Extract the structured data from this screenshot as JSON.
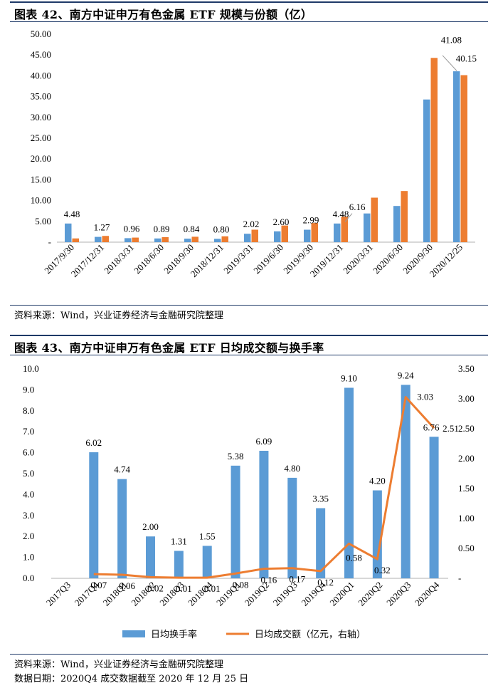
{
  "figure42": {
    "title": "图表 42、南方中证申万有色金属 ETF 规模与份额（亿）",
    "source": "资料来源：Wind，兴业证券经济与金融研究院整理"
  },
  "figure43": {
    "title": "图表 43、南方中证申万有色金属 ETF 日均成交额与换手率",
    "source": "资料来源：Wind，兴业证券经济与金融研究院整理",
    "note": "数据日期：2020Q4 成交数据截至 2020 年 12 月 25 日"
  },
  "colors": {
    "blue": "#5b9bd5",
    "orange": "#ed7d31",
    "title_rule": "#1f3a68"
  },
  "chart_data": [
    {
      "type": "bar",
      "title": "南方中证申万有色金属 ETF 规模与份额（亿）",
      "categories": [
        "2017/9/30",
        "2017/12/31",
        "2018/3/31",
        "2018/6/30",
        "2018/9/30",
        "2018/12/31",
        "2019/3/31",
        "2019/6/30",
        "2019/9/30",
        "2019/12/31",
        "2020/3/31",
        "2020/6/30",
        "2020/9/30",
        "2020/12/25"
      ],
      "series": [
        {
          "name": "规模",
          "color": "#5b9bd5",
          "values": [
            4.48,
            1.27,
            0.96,
            0.89,
            0.84,
            0.8,
            2.02,
            2.6,
            2.99,
            4.48,
            6.9,
            8.7,
            34.3,
            41.08
          ]
        },
        {
          "name": "份额",
          "color": "#ed7d31",
          "values": [
            0.9,
            1.5,
            1.1,
            1.2,
            1.3,
            1.4,
            3.0,
            4.0,
            4.6,
            6.16,
            10.7,
            12.3,
            44.3,
            40.15
          ]
        }
      ],
      "data_labels": [
        {
          "text": "4.48",
          "cat": 0,
          "v": 4.48
        },
        {
          "text": "1.27",
          "cat": 1,
          "v": 1.27
        },
        {
          "text": "0.96",
          "cat": 2,
          "v": 0.96
        },
        {
          "text": "0.89",
          "cat": 3,
          "v": 0.89
        },
        {
          "text": "0.84",
          "cat": 4,
          "v": 0.84
        },
        {
          "text": "0.80",
          "cat": 5,
          "v": 0.8
        },
        {
          "text": "2.02",
          "cat": 6,
          "v": 2.02
        },
        {
          "text": "2.60",
          "cat": 7,
          "v": 2.6
        },
        {
          "text": "2.99",
          "cat": 8,
          "v": 2.99
        },
        {
          "text": "4.48",
          "cat": 9,
          "v": 4.48
        },
        {
          "text": "6.16",
          "cat": 9.55,
          "v": 6.16
        },
        {
          "text": "41.08",
          "cat": 12.7,
          "v": 46.3
        },
        {
          "text": "40.15",
          "cat": 13.2,
          "v": 41.9
        }
      ],
      "y_ticks": [
        "-",
        "5.00",
        "10.00",
        "15.00",
        "20.00",
        "25.00",
        "30.00",
        "35.00",
        "40.00",
        "45.00",
        "50.00"
      ],
      "ylim": [
        0,
        50
      ]
    },
    {
      "type": "bar+line",
      "title": "南方中证申万有色金属 ETF 日均成交额与换手率",
      "categories": [
        "2017Q3",
        "2017Q4",
        "2018Q1",
        "2018Q2",
        "2018Q3",
        "2018Q4",
        "2019Q1",
        "2019Q2",
        "2019Q3",
        "2019Q4",
        "2020Q1",
        "2020Q2",
        "2020Q3",
        "2020Q4"
      ],
      "bars": {
        "name": "日均换手率",
        "color": "#5b9bd5",
        "values": [
          null,
          6.02,
          4.74,
          2.0,
          1.31,
          1.55,
          5.38,
          6.09,
          4.8,
          3.35,
          9.1,
          4.2,
          9.24,
          6.76
        ],
        "labels": [
          "",
          "6.02",
          "4.74",
          "2.00",
          "1.31",
          "1.55",
          "5.38",
          "6.09",
          "4.80",
          "3.35",
          "9.10",
          "4.20",
          "9.24",
          "6.76"
        ]
      },
      "line": {
        "name": "日均成交额（亿元，右轴）",
        "color": "#ed7d31",
        "values": [
          null,
          0.07,
          0.06,
          0.02,
          0.01,
          0.01,
          0.08,
          0.16,
          0.17,
          0.12,
          0.58,
          0.32,
          3.03,
          2.51
        ],
        "labels": [
          "",
          "0.07",
          "0.06",
          "0.02",
          "0.01",
          "0.01",
          "0.08",
          "0.16",
          "0.17",
          "0.12",
          "0.58",
          "0.32",
          "3.03",
          "2.51"
        ]
      },
      "left_ticks": [
        "0.0",
        "1.0",
        "2.0",
        "3.0",
        "4.0",
        "5.0",
        "6.0",
        "7.0",
        "8.0",
        "9.0",
        "10.0"
      ],
      "right_ticks": [
        "-",
        "0.50",
        "1.00",
        "1.50",
        "2.00",
        "2.50",
        "3.00",
        "3.50"
      ],
      "ylim_left": [
        0,
        10
      ],
      "ylim_right": [
        0,
        3.5
      ],
      "legend": {
        "position": "bottom",
        "bar_label": "日均换手率",
        "line_label": "日均成交额（亿元，右轴）"
      }
    }
  ]
}
